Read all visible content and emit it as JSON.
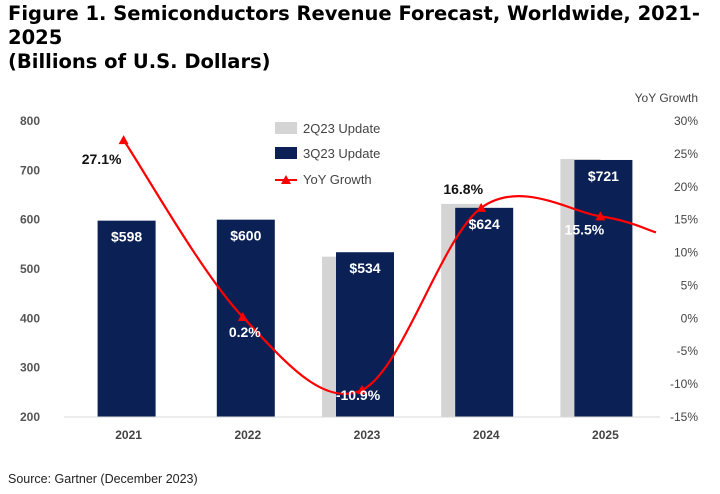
{
  "title_line1": "Figure 1. Semiconductors Revenue Forecast, Worldwide, 2021-2025",
  "title_line2": "(Billions of U.S. Dollars)",
  "source": "Source: Gartner (December 2023)",
  "colors": {
    "update_2q23": "#d4d4d4",
    "update_3q23": "#0b2155",
    "yoy_line": "#ff0000"
  },
  "chart_data": {
    "type": "bar",
    "categories": [
      "2021",
      "2022",
      "2023",
      "2024",
      "2025"
    ],
    "series": [
      {
        "name": "2Q23 Update",
        "type": "bar",
        "values": [
          null,
          null,
          525,
          632,
          723
        ]
      },
      {
        "name": "3Q23 Update",
        "type": "bar",
        "values": [
          598,
          600,
          534,
          624,
          721
        ],
        "labels": [
          "$598",
          "$600",
          "$534",
          "$624",
          "$721"
        ]
      },
      {
        "name": "YoY Growth",
        "type": "line",
        "axis": "right",
        "values": [
          27.1,
          0.2,
          -10.9,
          16.8,
          15.5
        ],
        "labels": [
          "27.1%",
          "0.2%",
          "-10.9%",
          "16.8%",
          "15.5%"
        ]
      }
    ],
    "ylim": [
      200,
      800
    ],
    "yticks": [
      200,
      300,
      400,
      500,
      600,
      700,
      800
    ],
    "y2label": "YoY Growth",
    "y2lim": [
      -15,
      30
    ],
    "y2ticks": [
      "-15%",
      "-10%",
      "-5%",
      "0%",
      "5%",
      "10%",
      "15%",
      "20%",
      "25%",
      "30%"
    ],
    "grid": false,
    "legend": "top-center"
  }
}
